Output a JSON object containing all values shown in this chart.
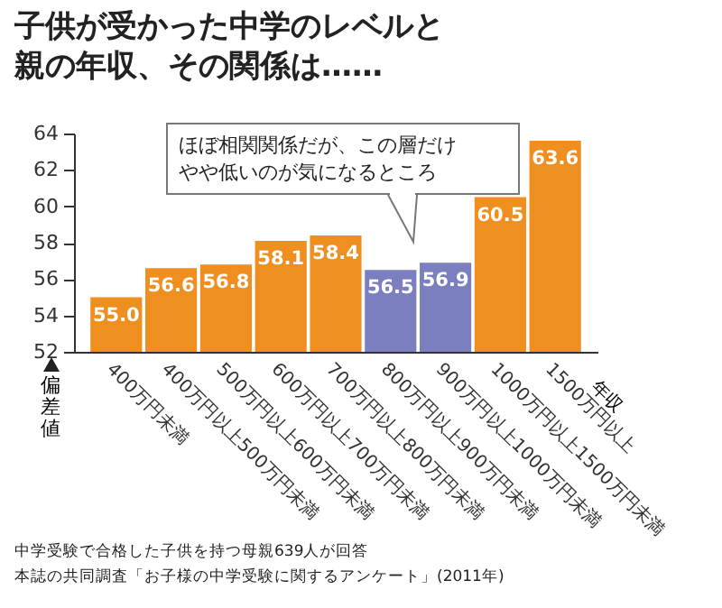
{
  "chart_data": {
    "type": "bar",
    "title": "子供が受かった中学のレベルと親の年収、その関係は……",
    "xlabel": "年収",
    "ylabel": "偏差値",
    "categories": [
      "400万円未満",
      "400万円以上500万円未満",
      "500万円以上600万円未満",
      "600万円以上700万円未満",
      "700万円以上800万円未満",
      "800万円以上900万円未満",
      "900万円以上1000万円未満",
      "1000万円以上1500万円未満",
      "1500万円以上"
    ],
    "values": [
      55.0,
      56.6,
      56.8,
      58.1,
      58.4,
      56.5,
      56.9,
      60.5,
      63.6
    ],
    "value_labels": [
      "55.0",
      "56.6",
      "56.8",
      "58.1",
      "58.4",
      "56.5",
      "56.9",
      "60.5",
      "63.6"
    ],
    "colors": [
      "#ef8f1f",
      "#ef8f1f",
      "#ef8f1f",
      "#ef8f1f",
      "#ef8f1f",
      "#7b7fc0",
      "#7b7fc0",
      "#ef8f1f",
      "#ef8f1f"
    ],
    "ylim": [
      52,
      64
    ],
    "yticks": [
      52,
      54,
      56,
      58,
      60,
      62,
      64
    ],
    "annotations": [
      "ほぼ相関関係だが、この層だけやや低いのが気になるところ",
      "中学受験で合格した子供を持つ母親639人が回答",
      "本誌の共同調査「お子様の中学受験に関するアンケート」(2011年)"
    ]
  }
}
